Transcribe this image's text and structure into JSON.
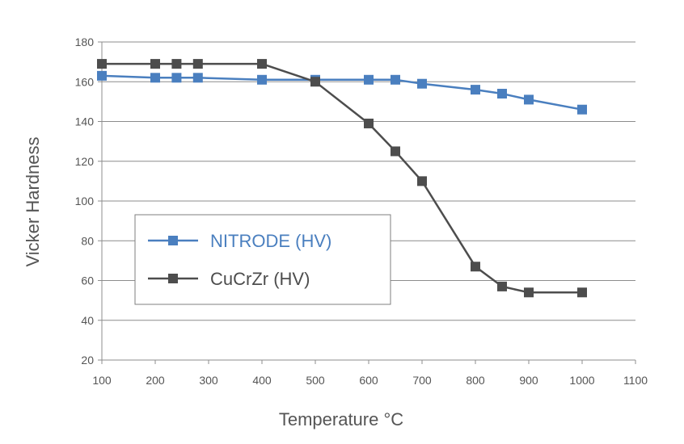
{
  "chart_data": {
    "type": "line",
    "title": "",
    "xlabel": "Temperature °C",
    "ylabel": "Vicker Hardness",
    "xlim": [
      100,
      1100
    ],
    "ylim": [
      20,
      180
    ],
    "xticks": [
      100,
      200,
      300,
      400,
      500,
      600,
      700,
      800,
      900,
      1000,
      1100
    ],
    "yticks": [
      20,
      40,
      60,
      80,
      100,
      120,
      140,
      160,
      180
    ],
    "grid": "horizontal",
    "legend": "bottom-left",
    "series": [
      {
        "name": "NITRODE (HV)",
        "color": "#4a7fbf",
        "marker": "square",
        "x": [
          100,
          200,
          240,
          280,
          400,
          500,
          600,
          650,
          700,
          800,
          850,
          900,
          1000
        ],
        "y": [
          163,
          162,
          162,
          162,
          161,
          161,
          161,
          161,
          159,
          156,
          154,
          151,
          146
        ]
      },
      {
        "name": "CuCrZr (HV)",
        "color": "#4d4d4d",
        "marker": "square",
        "x": [
          100,
          200,
          240,
          280,
          400,
          500,
          600,
          650,
          700,
          800,
          850,
          900,
          1000
        ],
        "y": [
          169,
          169,
          169,
          169,
          169,
          160,
          139,
          125,
          110,
          67,
          57,
          54,
          54
        ]
      }
    ]
  }
}
